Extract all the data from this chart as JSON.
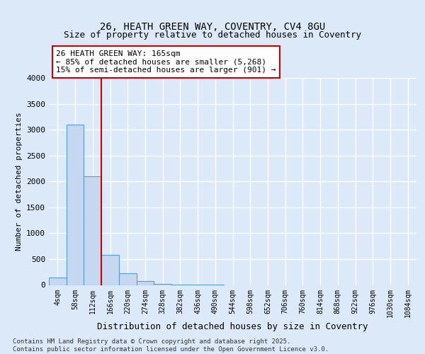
{
  "title1": "26, HEATH GREEN WAY, COVENTRY, CV4 8GU",
  "title2": "Size of property relative to detached houses in Coventry",
  "xlabel": "Distribution of detached houses by size in Coventry",
  "ylabel": "Number of detached properties",
  "bin_labels": [
    "4sqm",
    "58sqm",
    "112sqm",
    "166sqm",
    "220sqm",
    "274sqm",
    "328sqm",
    "382sqm",
    "436sqm",
    "490sqm",
    "544sqm",
    "598sqm",
    "652sqm",
    "706sqm",
    "760sqm",
    "814sqm",
    "868sqm",
    "922sqm",
    "976sqm",
    "1030sqm",
    "1084sqm"
  ],
  "bar_values": [
    150,
    3100,
    2100,
    580,
    230,
    70,
    20,
    5,
    2,
    1,
    0,
    0,
    0,
    0,
    0,
    0,
    0,
    0,
    0,
    0,
    0
  ],
  "bar_color": "#c5d8f0",
  "bar_edge_color": "#5b9bd5",
  "vline_x": 2.5,
  "vline_color": "#cc0000",
  "annotation_text": "26 HEATH GREEN WAY: 165sqm\n← 85% of detached houses are smaller (5,268)\n15% of semi-detached houses are larger (901) →",
  "annotation_box_color": "#cc0000",
  "ylim": [
    0,
    4000
  ],
  "yticks": [
    0,
    500,
    1000,
    1500,
    2000,
    2500,
    3000,
    3500,
    4000
  ],
  "footer_text": "Contains HM Land Registry data © Crown copyright and database right 2025.\nContains public sector information licensed under the Open Government Licence v3.0.",
  "bg_color": "#dce9f8",
  "plot_bg_color": "#dce9f8",
  "title1_fontsize": 10,
  "title2_fontsize": 9,
  "grid_color": "#ffffff"
}
